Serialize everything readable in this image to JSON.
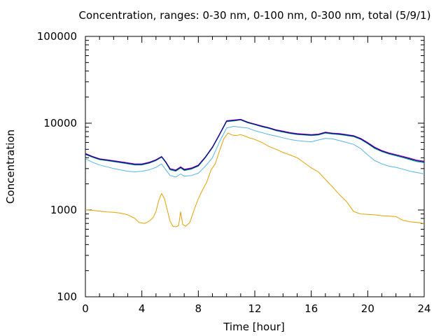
{
  "chart_data": {
    "type": "line",
    "title": "Concentration, ranges: 0-30 nm, 0-100 nm, 0-300 nm, total (5/9/1)",
    "xlabel": "Time [hour]",
    "ylabel": "Concentration",
    "xlim": [
      0,
      24
    ],
    "ylim": [
      100,
      100000
    ],
    "yscale": "log",
    "grid": false,
    "xticks": [
      0,
      4,
      8,
      12,
      16,
      20,
      24
    ],
    "xtick_labels": [
      "0",
      "4",
      "8",
      "12",
      "16",
      "20",
      "24"
    ],
    "yticks": [
      100,
      1000,
      10000,
      100000
    ],
    "ytick_labels": [
      "100",
      "1000",
      "10000",
      "100000"
    ],
    "series": [
      {
        "color": "#e69f00",
        "x": [
          0,
          0.5,
          1,
          1.5,
          2,
          2.5,
          3,
          3.5,
          3.8,
          4.2,
          4.5,
          4.8,
          5.0,
          5.2,
          5.4,
          5.6,
          5.8,
          6.0,
          6.2,
          6.4,
          6.6,
          6.75,
          6.9,
          7.1,
          7.4,
          7.7,
          8.0,
          8.3,
          8.6,
          8.9,
          9.2,
          9.5,
          9.8,
          10.1,
          10.4,
          10.7,
          11.0,
          11.3,
          11.6,
          11.9,
          12.2,
          12.5,
          13,
          13.5,
          14,
          14.5,
          15,
          15.5,
          16,
          16.5,
          17,
          17.5,
          18,
          18.5,
          19,
          19.5,
          20,
          20.5,
          21,
          21.5,
          22,
          22.5,
          23,
          23.5,
          24
        ],
        "y": [
          1000,
          990,
          970,
          950,
          940,
          920,
          880,
          800,
          720,
          700,
          740,
          820,
          960,
          1300,
          1550,
          1350,
          1000,
          740,
          650,
          640,
          660,
          950,
          680,
          650,
          720,
          1000,
          1350,
          1700,
          2100,
          2900,
          3400,
          4800,
          6600,
          7700,
          7300,
          7200,
          7400,
          7100,
          6800,
          6600,
          6300,
          6000,
          5400,
          5000,
          4600,
          4300,
          4000,
          3500,
          3050,
          2750,
          2250,
          1850,
          1500,
          1250,
          960,
          900,
          890,
          880,
          860,
          850,
          840,
          760,
          730,
          720,
          700
        ]
      },
      {
        "color": "#56b4e9",
        "x": [
          0,
          0.5,
          1,
          1.5,
          2,
          2.5,
          3,
          3.5,
          4,
          4.5,
          5.0,
          5.4,
          5.7,
          6.0,
          6.4,
          6.75,
          7.0,
          7.5,
          8.0,
          8.5,
          9.0,
          9.5,
          10,
          10.5,
          11,
          11.5,
          12,
          12.5,
          13,
          13.5,
          14,
          14.5,
          15,
          15.5,
          16,
          16.5,
          17,
          17.5,
          18,
          18.5,
          19,
          19.5,
          20,
          20.5,
          21,
          21.5,
          22,
          22.5,
          23,
          23.5,
          24
        ],
        "y": [
          3900,
          3550,
          3300,
          3150,
          3000,
          2900,
          2800,
          2750,
          2800,
          2900,
          3100,
          3400,
          2900,
          2500,
          2400,
          2600,
          2450,
          2500,
          2650,
          3200,
          4000,
          6100,
          8800,
          9200,
          9000,
          8800,
          8200,
          7800,
          7400,
          7100,
          6800,
          6500,
          6300,
          6200,
          6100,
          6400,
          6700,
          6600,
          6300,
          6000,
          5700,
          5100,
          4300,
          3700,
          3400,
          3200,
          3100,
          2950,
          2800,
          2700,
          2600
        ]
      },
      {
        "color": "#009e73",
        "x": [
          0,
          0.5,
          1,
          1.5,
          2,
          2.5,
          3,
          3.5,
          4,
          4.5,
          5.0,
          5.4,
          5.7,
          6.0,
          6.4,
          6.75,
          7.0,
          7.5,
          8.0,
          8.5,
          9.0,
          9.5,
          10,
          10.5,
          11,
          11.5,
          12,
          12.5,
          13,
          13.5,
          14,
          14.5,
          15,
          15.5,
          16,
          16.5,
          17,
          17.5,
          18,
          18.5,
          19,
          19.5,
          20,
          20.5,
          21,
          21.5,
          22,
          22.5,
          23,
          23.5,
          24
        ],
        "y": [
          4350,
          4050,
          3800,
          3700,
          3600,
          3500,
          3400,
          3300,
          3300,
          3450,
          3700,
          4050,
          3500,
          2900,
          2800,
          3050,
          2850,
          2950,
          3200,
          4000,
          5200,
          7300,
          10400,
          10600,
          10900,
          10100,
          9600,
          9100,
          8700,
          8200,
          7900,
          7600,
          7400,
          7300,
          7200,
          7300,
          7700,
          7500,
          7400,
          7200,
          7000,
          6500,
          5800,
          5100,
          4700,
          4400,
          4200,
          4000,
          3800,
          3600,
          3500
        ]
      },
      {
        "color": "#9400d3",
        "x": [
          0,
          0.5,
          1,
          1.5,
          2,
          2.5,
          3,
          3.5,
          4,
          4.5,
          5.0,
          5.4,
          5.7,
          6.0,
          6.4,
          6.75,
          7.0,
          7.5,
          8.0,
          8.5,
          9.0,
          9.5,
          10,
          10.5,
          11,
          11.5,
          12,
          12.5,
          13,
          13.5,
          14,
          14.5,
          15,
          15.5,
          16,
          16.5,
          17,
          17.5,
          18,
          18.5,
          19,
          19.5,
          20,
          20.5,
          21,
          21.5,
          22,
          22.5,
          23,
          23.5,
          24
        ],
        "y": [
          4500,
          4150,
          3900,
          3800,
          3700,
          3600,
          3500,
          3400,
          3400,
          3550,
          3800,
          4150,
          3600,
          3000,
          2900,
          3150,
          2950,
          3050,
          3300,
          4100,
          5350,
          7500,
          10700,
          10900,
          11100,
          10300,
          9800,
          9300,
          8900,
          8400,
          8100,
          7800,
          7600,
          7500,
          7400,
          7500,
          7900,
          7700,
          7600,
          7400,
          7200,
          6700,
          6000,
          5300,
          4850,
          4550,
          4350,
          4150,
          3950,
          3750,
          3650
        ]
      },
      {
        "color": "#000080",
        "x": [
          0,
          0.5,
          1,
          1.5,
          2,
          2.5,
          3,
          3.5,
          4,
          4.5,
          5.0,
          5.4,
          5.7,
          6.0,
          6.4,
          6.75,
          7.0,
          7.5,
          8.0,
          8.5,
          9.0,
          9.5,
          10,
          10.5,
          11,
          11.5,
          12,
          12.5,
          13,
          13.5,
          14,
          14.5,
          15,
          15.5,
          16,
          16.5,
          17,
          17.5,
          18,
          18.5,
          19,
          19.5,
          20,
          20.5,
          21,
          21.5,
          22,
          22.5,
          23,
          23.5,
          24
        ],
        "y": [
          4420,
          4100,
          3850,
          3750,
          3650,
          3550,
          3450,
          3350,
          3350,
          3500,
          3750,
          4100,
          3550,
          2950,
          2850,
          3100,
          2900,
          3000,
          3250,
          4050,
          5280,
          7400,
          10550,
          10750,
          11000,
          10200,
          9700,
          9200,
          8800,
          8300,
          8000,
          7700,
          7500,
          7400,
          7300,
          7400,
          7800,
          7600,
          7500,
          7300,
          7100,
          6600,
          5900,
          5200,
          4780,
          4480,
          4280,
          4080,
          3880,
          3680,
          3580
        ]
      }
    ]
  }
}
